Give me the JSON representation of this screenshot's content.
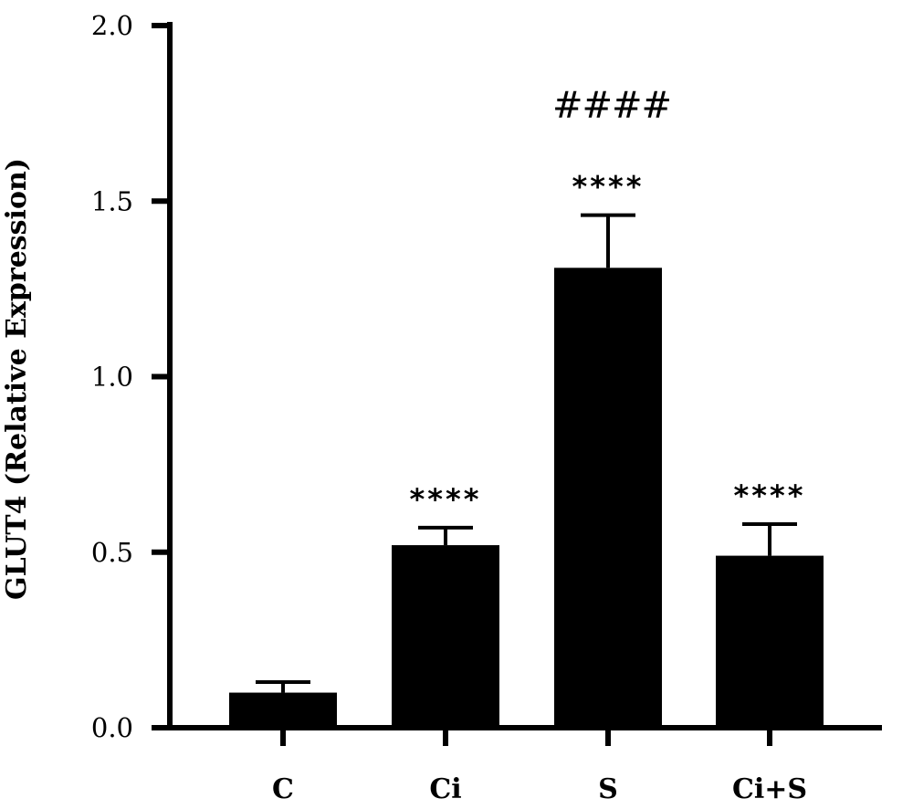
{
  "chart_data": {
    "type": "bar",
    "title": "",
    "xlabel": "",
    "ylabel": "GLUT4 (Relative Expression)",
    "ylim": [
      0,
      2.0
    ],
    "yticks": [
      "0.0",
      "0.5",
      "1.0",
      "1.5",
      "2.0"
    ],
    "ytick_values": [
      0,
      0.5,
      1.0,
      1.5,
      2.0
    ],
    "categories": [
      "C",
      "Ci",
      "S",
      "Ci+S"
    ],
    "values": [
      0.1,
      0.52,
      1.31,
      0.49
    ],
    "errors": [
      0.13,
      0.57,
      1.46,
      0.58
    ],
    "significance": [
      "",
      "****",
      "****",
      "****"
    ],
    "significance_secondary": [
      "",
      "",
      "####",
      ""
    ],
    "bar_color": "#000000",
    "grid": false,
    "legend": "none"
  }
}
